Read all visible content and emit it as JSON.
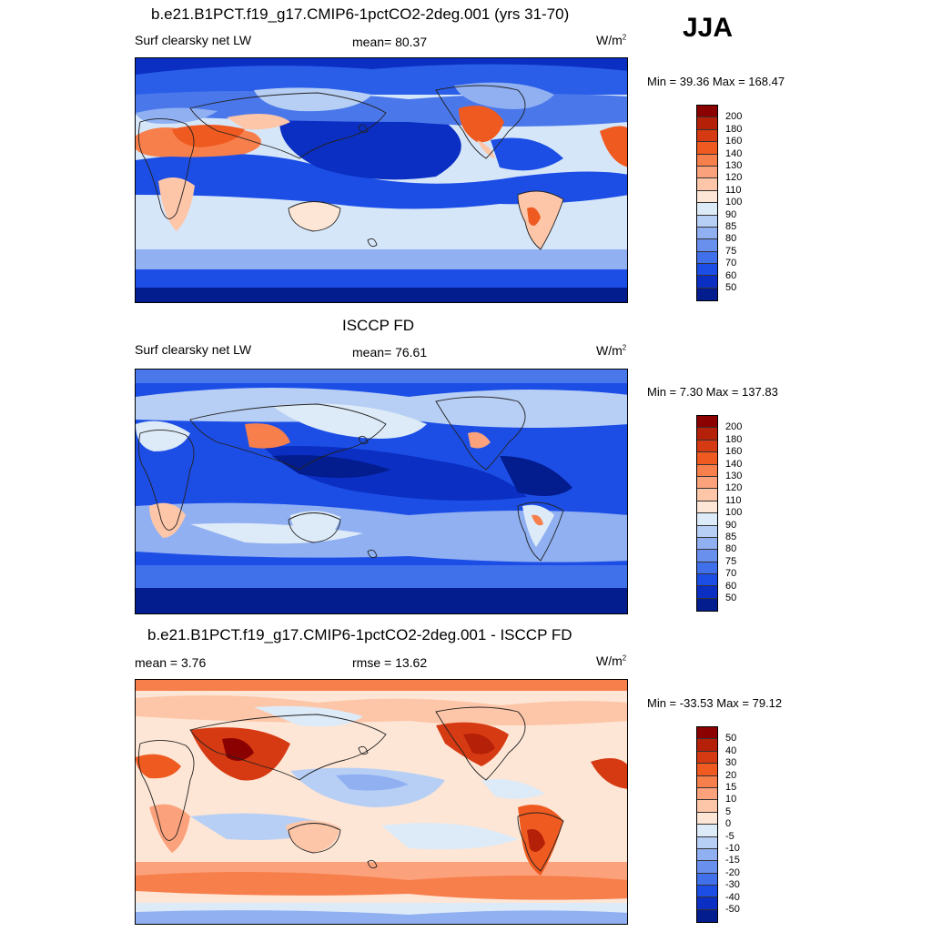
{
  "season": "JJA",
  "panels": [
    {
      "title": "b.e21.B1PCT.f19_g17.CMIP6-1pctCO2-2deg.001 (yrs 31-70)",
      "left_label": "Surf clearsky net LW",
      "center_label": "mean=  80.37",
      "units": "W/m",
      "units_sup": "2",
      "minmax": "Min =  39.36 Max = 168.47",
      "colorbar": {
        "colors": [
          "#8b0000",
          "#b52008",
          "#d63a12",
          "#ef5a20",
          "#f77f4c",
          "#fba27c",
          "#fdc6a8",
          "#fde6d6",
          "#ddeaf7",
          "#b7cff5",
          "#90b0f2",
          "#6a90ee",
          "#4070ea",
          "#1c4ee6",
          "#0a2fc2",
          "#031c8e"
        ],
        "labels": [
          "200",
          "180",
          "160",
          "140",
          "130",
          "120",
          "110",
          "100",
          "90",
          "85",
          "80",
          "75",
          "70",
          "60",
          "50"
        ]
      }
    },
    {
      "title": "ISCCP FD",
      "left_label": "Surf clearsky net LW",
      "center_label": "mean=  76.61",
      "units": "W/m",
      "units_sup": "2",
      "minmax": "Min =   7.30 Max = 137.83",
      "colorbar": {
        "colors": [
          "#8b0000",
          "#b52008",
          "#d63a12",
          "#ef5a20",
          "#f77f4c",
          "#fba27c",
          "#fdc6a8",
          "#fde6d6",
          "#ddeaf7",
          "#b7cff5",
          "#90b0f2",
          "#6a90ee",
          "#4070ea",
          "#1c4ee6",
          "#0a2fc2",
          "#031c8e"
        ],
        "labels": [
          "200",
          "180",
          "160",
          "140",
          "130",
          "120",
          "110",
          "100",
          "90",
          "85",
          "80",
          "75",
          "70",
          "60",
          "50"
        ]
      }
    },
    {
      "title": "b.e21.B1PCT.f19_g17.CMIP6-1pctCO2-2deg.001 - ISCCP FD",
      "left_label": "mean =   3.76",
      "center_label": "rmse =  13.62",
      "units": "W/m",
      "units_sup": "2",
      "minmax": "Min = -33.53 Max =  79.12",
      "colorbar": {
        "colors": [
          "#8b0000",
          "#b52008",
          "#d63a12",
          "#ef5a20",
          "#f77f4c",
          "#fba27c",
          "#fdc6a8",
          "#fde6d6",
          "#ddeaf7",
          "#b7cff5",
          "#90b0f2",
          "#6a90ee",
          "#4070ea",
          "#1c4ee6",
          "#0a2fc2",
          "#031c8e"
        ],
        "labels": [
          "50",
          "40",
          "30",
          "20",
          "15",
          "10",
          "5",
          "0",
          "-5",
          "-10",
          "-15",
          "-20",
          "-30",
          "-40",
          "-50"
        ]
      }
    }
  ]
}
